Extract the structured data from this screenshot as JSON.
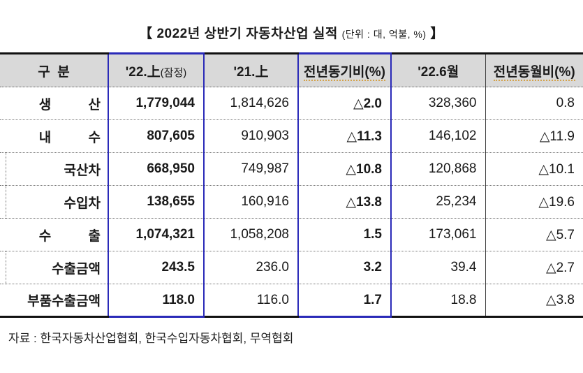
{
  "title": {
    "main": "【 2022년 상반기 자동차산업 실적",
    "unit": "(단위 : 대, 억불, %)",
    "close": "】"
  },
  "table": {
    "headers": {
      "category": "구  분",
      "h22_main": "'22.上",
      "h22_note": "(잠정)",
      "h21": "'21.上",
      "yoy_half": "전년동기비(%)",
      "jun22": "'22.6월",
      "yoy_month": "전년동월비(%)"
    },
    "rows": [
      {
        "label": "생 산",
        "h22": "1,779,044",
        "h21": "1,814,626",
        "yoy_half": "△2.0",
        "jun22": "328,360",
        "yoy_month": "0.8"
      },
      {
        "label": "내 수",
        "h22": "807,605",
        "h21": "910,903",
        "yoy_half": "△11.3",
        "jun22": "146,102",
        "yoy_month": "△11.9"
      },
      {
        "label": "국산차",
        "h22": "668,950",
        "h21": "749,987",
        "yoy_half": "△10.8",
        "jun22": "120,868",
        "yoy_month": "△10.1"
      },
      {
        "label": "수입차",
        "h22": "138,655",
        "h21": "160,916",
        "yoy_half": "△13.8",
        "jun22": "25,234",
        "yoy_month": "△19.6"
      },
      {
        "label": "수 출",
        "h22": "1,074,321",
        "h21": "1,058,208",
        "yoy_half": "1.5",
        "jun22": "173,061",
        "yoy_month": "△5.7"
      },
      {
        "label": "수출금액",
        "h22": "243.5",
        "h21": "236.0",
        "yoy_half": "3.2",
        "jun22": "39.4",
        "yoy_month": "△2.7"
      },
      {
        "label": "부품수출금액",
        "h22": "118.0",
        "h21": "116.0",
        "yoy_half": "1.7",
        "jun22": "18.8",
        "yoy_month": "△3.8"
      }
    ]
  },
  "source": "자료 : 한국자동차산업협회, 한국수입자동차협회, 무역협회",
  "colors": {
    "header_bg": "#d9d9d9",
    "highlight_border": "#2a2ab8"
  }
}
